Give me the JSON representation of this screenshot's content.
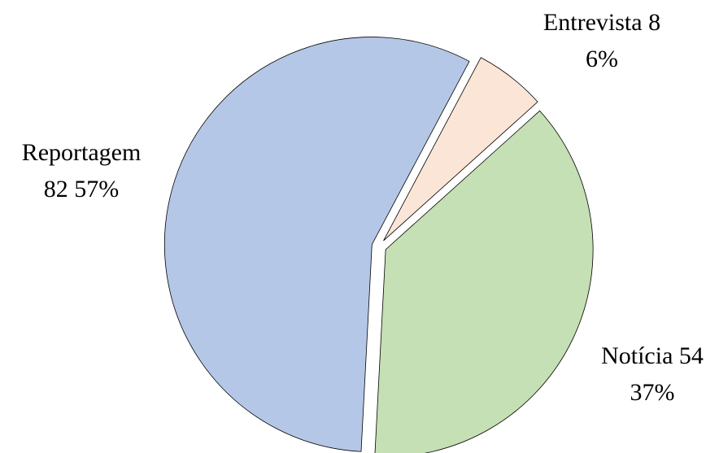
{
  "chart_data": {
    "type": "pie",
    "categories": [
      "Entrevista",
      "Notícia",
      "Reportagem"
    ],
    "values": [
      8,
      54,
      82
    ],
    "percent_labels": [
      "6%",
      "37%",
      "57%"
    ],
    "colors": [
      "#fbe5d6",
      "#c5e0b4",
      "#b4c7e7"
    ]
  }
}
